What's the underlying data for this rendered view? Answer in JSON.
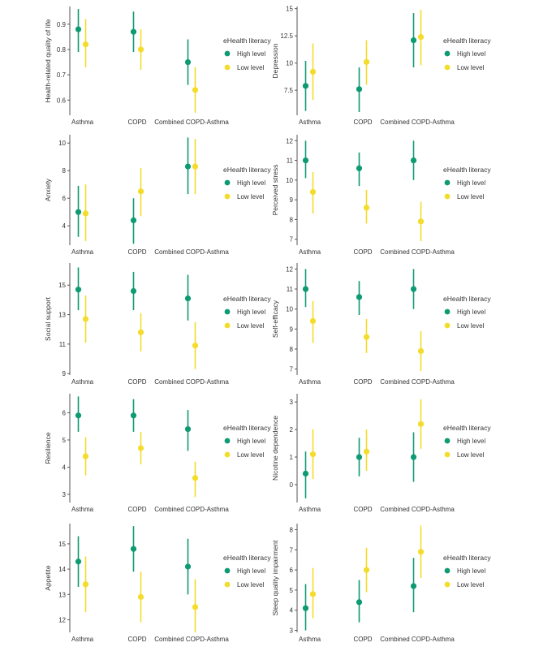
{
  "colors": {
    "high": "#0e9a72",
    "low": "#f3dc2b",
    "axis": "#555555",
    "text": "#333333"
  },
  "chart_data": [
    {
      "type": "errorbar",
      "title": "",
      "ylabel": "Health-related quality of life",
      "categories": [
        "Asthma",
        "COPD",
        "Combined COPD-Asthma"
      ],
      "ylim": [
        0.54,
        0.97
      ],
      "yticks": [
        0.6,
        0.7,
        0.8,
        0.9
      ],
      "legend": {
        "title": "eHealth literacy",
        "position": "right",
        "labels": [
          "High level",
          "Low level"
        ]
      },
      "series": [
        {
          "name": "High level",
          "values": [
            0.88,
            0.87,
            0.75
          ],
          "lower": [
            0.79,
            0.79,
            0.66
          ],
          "upper": [
            0.96,
            0.95,
            0.84
          ]
        },
        {
          "name": "Low level",
          "values": [
            0.82,
            0.8,
            0.64
          ],
          "lower": [
            0.73,
            0.72,
            0.55
          ],
          "upper": [
            0.92,
            0.88,
            0.73
          ]
        }
      ]
    },
    {
      "type": "errorbar",
      "title": "",
      "ylabel": "Depression",
      "categories": [
        "Asthma",
        "COPD",
        "Combined COPD-Asthma"
      ],
      "ylim": [
        5.2,
        15.2
      ],
      "yticks": [
        7.5,
        10.0,
        12.5,
        15.0
      ],
      "legend": {
        "title": "eHealth literacy",
        "position": "right",
        "labels": [
          "High level",
          "Low level"
        ]
      },
      "series": [
        {
          "name": "High level",
          "values": [
            7.9,
            7.6,
            12.1
          ],
          "lower": [
            5.6,
            5.5,
            9.6
          ],
          "upper": [
            10.2,
            9.6,
            14.6
          ]
        },
        {
          "name": "Low level",
          "values": [
            9.2,
            10.1,
            12.4
          ],
          "lower": [
            6.6,
            8.0,
            9.8
          ],
          "upper": [
            11.8,
            12.1,
            14.9
          ]
        }
      ]
    },
    {
      "type": "errorbar",
      "title": "",
      "ylabel": "Anxiety",
      "categories": [
        "Asthma",
        "COPD",
        "Combined COPD-Asthma"
      ],
      "ylim": [
        2.6,
        10.6
      ],
      "yticks": [
        4,
        6,
        8,
        10
      ],
      "legend": {
        "title": "eHealth literacy",
        "position": "right",
        "labels": [
          "High level",
          "Low level"
        ]
      },
      "series": [
        {
          "name": "High level",
          "values": [
            5.0,
            4.4,
            8.3
          ],
          "lower": [
            3.2,
            2.7,
            6.3
          ],
          "upper": [
            6.9,
            6.0,
            10.4
          ]
        },
        {
          "name": "Low level",
          "values": [
            4.9,
            6.5,
            8.3
          ],
          "lower": [
            2.9,
            4.7,
            6.3
          ],
          "upper": [
            7.0,
            8.2,
            10.3
          ]
        }
      ]
    },
    {
      "type": "errorbar",
      "title": "",
      "ylabel": "Perceived stress",
      "categories": [
        "Asthma",
        "COPD",
        "Combined COPD-Asthma"
      ],
      "ylim": [
        6.7,
        12.3
      ],
      "yticks": [
        7,
        8,
        9,
        10,
        11,
        12
      ],
      "legend": {
        "title": "eHealth literacy",
        "position": "right",
        "labels": [
          "High level",
          "Low level"
        ]
      },
      "series": [
        {
          "name": "High level",
          "values": [
            11.0,
            10.6,
            11.0
          ],
          "lower": [
            10.1,
            9.7,
            10.0
          ],
          "upper": [
            12.0,
            11.4,
            12.0
          ]
        },
        {
          "name": "Low level",
          "values": [
            9.4,
            8.6,
            7.9
          ],
          "lower": [
            8.3,
            7.8,
            6.9
          ],
          "upper": [
            10.4,
            9.5,
            8.9
          ]
        }
      ]
    },
    {
      "type": "errorbar",
      "title": "",
      "ylabel": "Social support",
      "categories": [
        "Asthma",
        "COPD",
        "Combined COPD-Asthma"
      ],
      "ylim": [
        8.9,
        16.5
      ],
      "yticks": [
        9,
        11,
        13,
        15
      ],
      "legend": {
        "title": "eHealth literacy",
        "position": "right",
        "labels": [
          "High level",
          "Low level"
        ]
      },
      "series": [
        {
          "name": "High level",
          "values": [
            14.7,
            14.6,
            14.1
          ],
          "lower": [
            13.3,
            13.3,
            12.6
          ],
          "upper": [
            16.2,
            15.9,
            15.7
          ]
        },
        {
          "name": "Low level",
          "values": [
            12.7,
            11.8,
            10.9
          ],
          "lower": [
            11.1,
            10.5,
            9.3
          ],
          "upper": [
            14.3,
            13.1,
            12.5
          ]
        }
      ]
    },
    {
      "type": "errorbar",
      "title": "",
      "ylabel": "Self-efficacy",
      "categories": [
        "Asthma",
        "COPD",
        "Combined COPD-Asthma"
      ],
      "ylim": [
        6.7,
        12.3
      ],
      "yticks": [
        7,
        8,
        9,
        10,
        11,
        12
      ],
      "legend": {
        "title": "eHealth literacy",
        "position": "right",
        "labels": [
          "High level",
          "Low level"
        ]
      },
      "series": [
        {
          "name": "High level",
          "values": [
            11.0,
            10.6,
            11.0
          ],
          "lower": [
            10.1,
            9.7,
            10.0
          ],
          "upper": [
            12.0,
            11.4,
            12.0
          ]
        },
        {
          "name": "Low level",
          "values": [
            9.4,
            8.6,
            7.9
          ],
          "lower": [
            8.3,
            7.8,
            6.9
          ],
          "upper": [
            10.4,
            9.5,
            8.9
          ]
        }
      ]
    },
    {
      "type": "errorbar",
      "title": "",
      "ylabel": "Resilience",
      "categories": [
        "Asthma",
        "COPD",
        "Combined COPD-Asthma"
      ],
      "ylim": [
        2.7,
        6.7
      ],
      "yticks": [
        3,
        4,
        5,
        6
      ],
      "legend": {
        "title": "eHealth literacy",
        "position": "right",
        "labels": [
          "High level",
          "Low level"
        ]
      },
      "series": [
        {
          "name": "High level",
          "values": [
            5.9,
            5.9,
            5.4
          ],
          "lower": [
            5.3,
            5.3,
            4.6
          ],
          "upper": [
            6.6,
            6.5,
            6.1
          ]
        },
        {
          "name": "Low level",
          "values": [
            4.4,
            4.7,
            3.6
          ],
          "lower": [
            3.7,
            4.1,
            2.9
          ],
          "upper": [
            5.1,
            5.3,
            4.2
          ]
        }
      ]
    },
    {
      "type": "errorbar",
      "title": "",
      "ylabel": "Nicotine dependence",
      "categories": [
        "Asthma",
        "COPD",
        "Combined COPD-Asthma"
      ],
      "ylim": [
        -0.65,
        3.3
      ],
      "yticks": [
        0,
        1,
        2,
        3
      ],
      "legend": {
        "title": "eHealth literacy",
        "position": "right",
        "labels": [
          "High level",
          "Low level"
        ]
      },
      "series": [
        {
          "name": "High level",
          "values": [
            0.4,
            1.0,
            1.0
          ],
          "lower": [
            -0.5,
            0.3,
            0.1
          ],
          "upper": [
            1.2,
            1.7,
            1.9
          ]
        },
        {
          "name": "Low level",
          "values": [
            1.1,
            1.2,
            2.2
          ],
          "lower": [
            0.2,
            0.5,
            1.3
          ],
          "upper": [
            2.0,
            2.0,
            3.1
          ]
        }
      ]
    },
    {
      "type": "errorbar",
      "title": "",
      "ylabel": "Appetite",
      "categories": [
        "Asthma",
        "COPD",
        "Combined COPD-Asthma"
      ],
      "ylim": [
        11.5,
        15.8
      ],
      "yticks": [
        12,
        13,
        14,
        15
      ],
      "legend": {
        "title": "eHealth literacy",
        "position": "right",
        "labels": [
          "High level",
          "Low level"
        ]
      },
      "series": [
        {
          "name": "High level",
          "values": [
            14.3,
            14.8,
            14.1
          ],
          "lower": [
            13.3,
            13.9,
            13.0
          ],
          "upper": [
            15.3,
            15.7,
            15.2
          ]
        },
        {
          "name": "Low level",
          "values": [
            13.4,
            12.9,
            12.5
          ],
          "lower": [
            12.3,
            11.9,
            11.5
          ],
          "upper": [
            14.5,
            13.9,
            13.6
          ]
        }
      ]
    },
    {
      "type": "errorbar",
      "title": "",
      "ylabel": "Sleep quality impairment",
      "categories": [
        "Asthma",
        "COPD",
        "Combined COPD-Asthma"
      ],
      "ylim": [
        2.9,
        8.3
      ],
      "yticks": [
        3,
        4,
        5,
        6,
        7,
        8
      ],
      "legend": {
        "title": "eHealth literacy",
        "position": "right",
        "labels": [
          "High level",
          "Low level"
        ]
      },
      "series": [
        {
          "name": "High level",
          "values": [
            4.1,
            4.4,
            5.2
          ],
          "lower": [
            3.0,
            3.4,
            3.9
          ],
          "upper": [
            5.3,
            5.5,
            6.6
          ]
        },
        {
          "name": "Low level",
          "values": [
            4.8,
            6.0,
            6.9
          ],
          "lower": [
            3.6,
            4.9,
            5.6
          ],
          "upper": [
            6.1,
            7.1,
            8.2
          ]
        }
      ]
    }
  ]
}
